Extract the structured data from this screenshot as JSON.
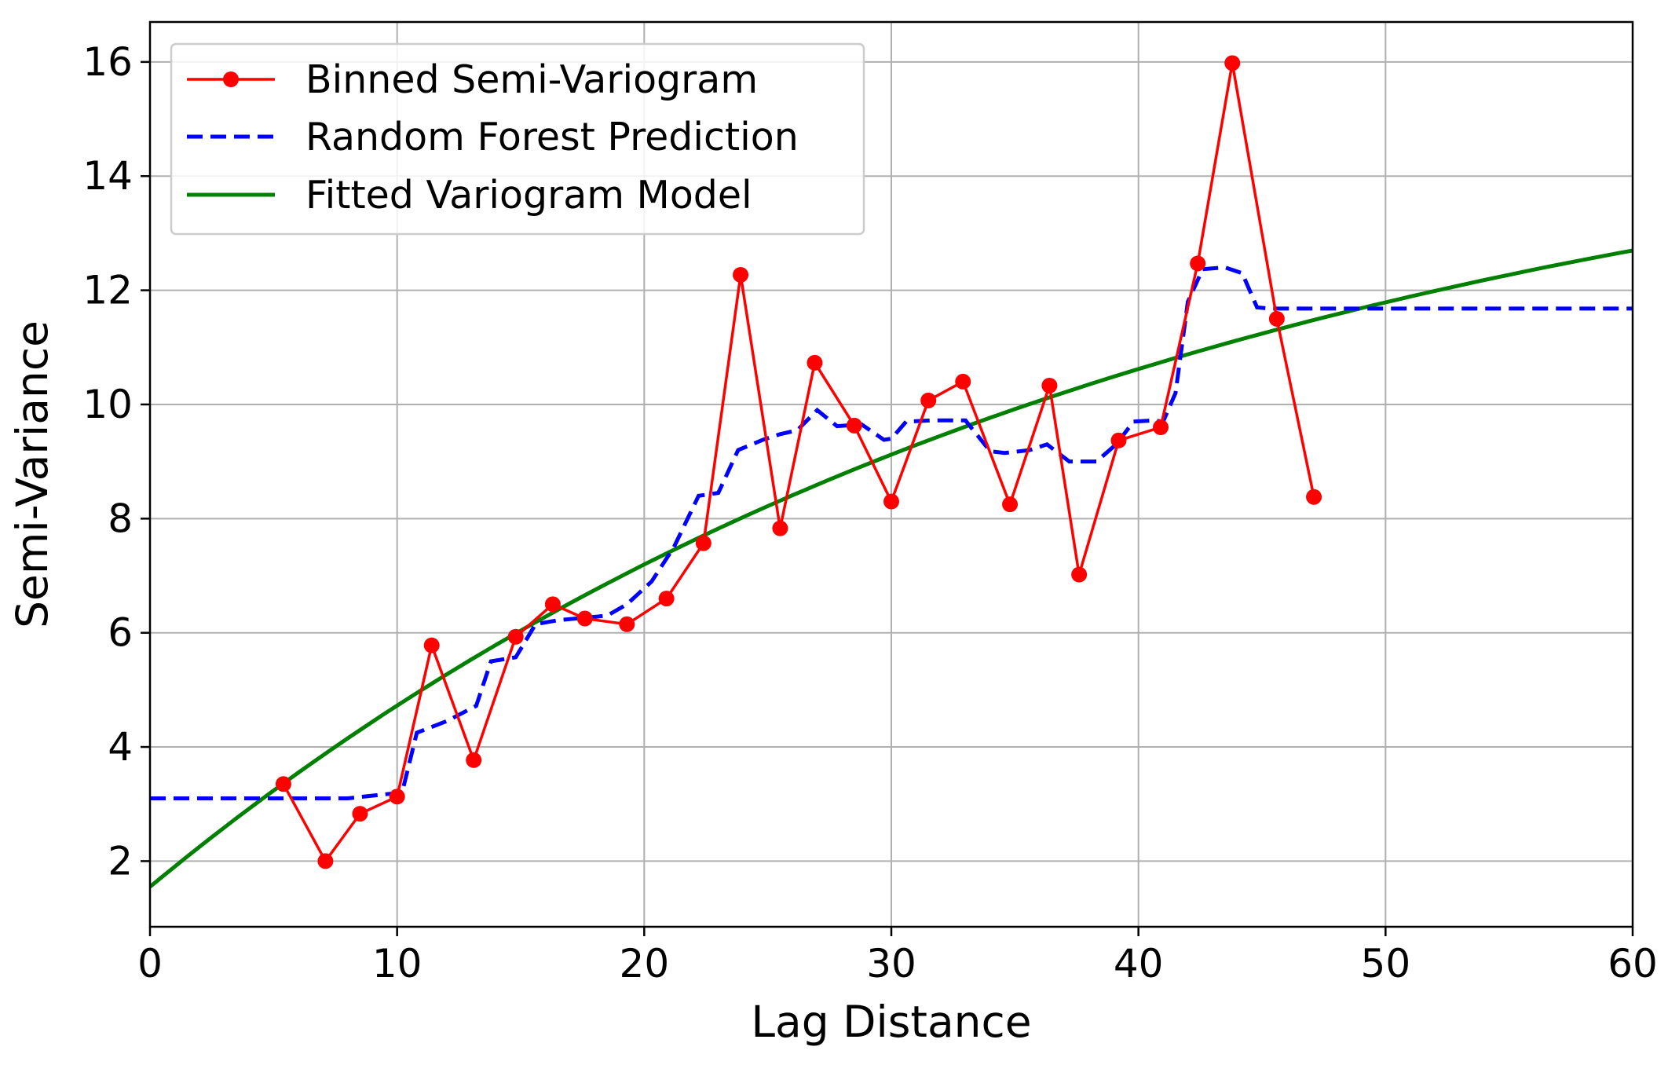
{
  "chart_data": {
    "type": "line",
    "title": "",
    "xlabel": "Lag Distance",
    "ylabel": "Semi-Variance",
    "xlim": [
      0,
      60
    ],
    "ylim": [
      0.85,
      16.7
    ],
    "xticks": [
      0,
      10,
      20,
      30,
      40,
      50,
      60
    ],
    "xtick_labels": [
      "0",
      "10",
      "20",
      "30",
      "40",
      "50",
      "60"
    ],
    "yticks": [
      2,
      4,
      6,
      8,
      10,
      12,
      14,
      16
    ],
    "ytick_labels": [
      "2",
      "4",
      "6",
      "8",
      "10",
      "12",
      "14",
      "16"
    ],
    "grid": true,
    "legend_position": "top-left",
    "series": [
      {
        "name": "Binned Semi-Variogram",
        "style": "solid-with-markers",
        "color": "#ff0000",
        "x": [
          5.4,
          7.1,
          8.5,
          10.0,
          11.4,
          13.1,
          14.8,
          16.3,
          17.6,
          19.3,
          20.9,
          22.4,
          23.9,
          25.5,
          26.9,
          28.5,
          30.0,
          31.5,
          32.9,
          34.8,
          36.4,
          37.6,
          39.2,
          40.9,
          42.4,
          43.8,
          45.6,
          47.1
        ],
        "y": [
          3.35,
          2.0,
          2.83,
          3.13,
          5.78,
          3.77,
          5.93,
          6.5,
          6.25,
          6.15,
          6.6,
          7.57,
          12.27,
          7.83,
          10.73,
          9.63,
          8.3,
          10.07,
          10.4,
          8.25,
          10.33,
          7.02,
          9.37,
          9.6,
          12.47,
          15.98,
          11.5,
          8.38
        ]
      },
      {
        "name": "Random Forest Prediction",
        "style": "dashed",
        "color": "#0000ff",
        "x": [
          0,
          3,
          6,
          8,
          9.5,
          10.2,
          10.8,
          12,
          13.2,
          13.8,
          14.8,
          15.6,
          16.5,
          18.5,
          19.3,
          20.3,
          21.2,
          22.2,
          23.0,
          23.8,
          24.8,
          25.5,
          26.2,
          27.0,
          27.8,
          28.8,
          29.7,
          30.0,
          30.6,
          31.6,
          33.0,
          34.0,
          34.6,
          35.6,
          36.3,
          37.2,
          38.3,
          39.1,
          39.8,
          40.6,
          41.0,
          41.5,
          42.0,
          42.6,
          43.5,
          44.2,
          44.8,
          45.3,
          50,
          55,
          60
        ],
        "y": [
          3.1,
          3.1,
          3.1,
          3.1,
          3.17,
          3.2,
          4.25,
          4.45,
          4.72,
          5.5,
          5.57,
          6.15,
          6.22,
          6.3,
          6.5,
          6.9,
          7.5,
          8.4,
          8.45,
          9.2,
          9.38,
          9.48,
          9.55,
          9.9,
          9.62,
          9.65,
          9.38,
          9.4,
          9.7,
          9.72,
          9.72,
          9.18,
          9.15,
          9.2,
          9.3,
          9.0,
          9.0,
          9.3,
          9.7,
          9.72,
          9.7,
          10.2,
          11.8,
          12.37,
          12.4,
          12.3,
          11.7,
          11.68,
          11.68,
          11.68,
          11.68
        ]
      },
      {
        "name": "Fitted Variogram Model",
        "style": "solid",
        "color": "#008000",
        "model": {
          "nugget": 1.55,
          "sill": 15.9,
          "range": 40.0,
          "kind": "exponential"
        }
      }
    ]
  },
  "colors": {
    "binned": "#ff0000",
    "rf": "#0000ff",
    "fitted": "#008000",
    "grid": "#b0b0b0",
    "axis": "#000000"
  }
}
